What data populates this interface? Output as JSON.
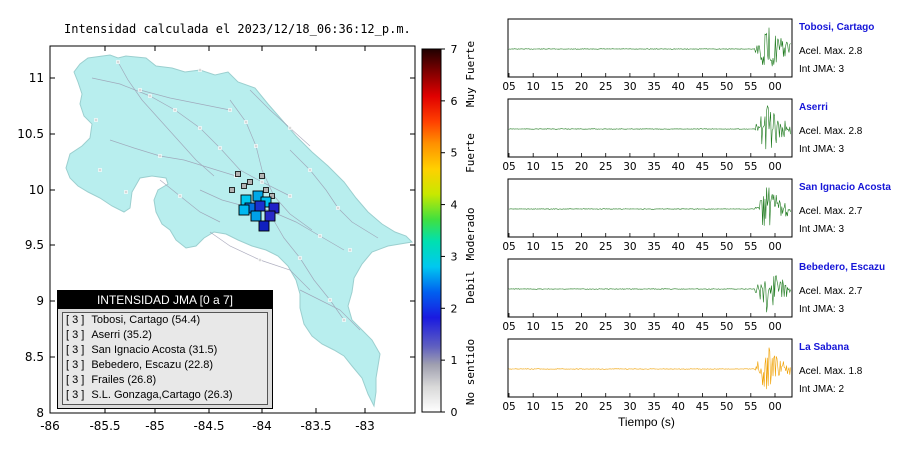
{
  "map": {
    "title": "Intensidad calculada el 2023/12/18_06:36:12_p.m.",
    "lon_ticks": [
      "-86",
      "-85.5",
      "-85",
      "-84.5",
      "-84",
      "-83.5",
      "-83"
    ],
    "lat_ticks": [
      "11",
      "10.5",
      "10",
      "9.5",
      "9",
      "8.5",
      "8"
    ],
    "land_color": "#b8eeee",
    "sea_color": "#ffffff"
  },
  "colorbar": {
    "ticks": [
      "0",
      "1",
      "2",
      "3",
      "4",
      "5",
      "6",
      "7"
    ],
    "categories": [
      "No sentido",
      "Debil",
      "Moderado",
      "Fuerte",
      "Muy Fuerte"
    ]
  },
  "legend": {
    "title": "INTENSIDAD JMA [0 a 7]",
    "rows": [
      {
        "level": "[ 3 ]",
        "station": "Tobosi, Cartago (54.4)"
      },
      {
        "level": "[ 3 ]",
        "station": "Aserri (35.2)"
      },
      {
        "level": "[ 3 ]",
        "station": "San Ignacio Acosta (31.5)"
      },
      {
        "level": "[ 3 ]",
        "station": "Bebedero, Escazu (22.8)"
      },
      {
        "level": "[ 3 ]",
        "station": "Frailes (26.8)"
      },
      {
        "level": "[ 3 ]",
        "station": "S.L. Gonzaga,Cartago (26.3)"
      }
    ]
  },
  "seismograms": {
    "time_label": "Tiempo (s)",
    "ticks": [
      "05",
      "10",
      "15",
      "20",
      "25",
      "30",
      "35",
      "40",
      "45",
      "50",
      "55",
      "00"
    ],
    "stations": [
      {
        "name": "Tobosi, Cartago",
        "accel": "Acel. Max. 2.8",
        "intensity": "Int JMA: 3",
        "color": "#1e7a1e"
      },
      {
        "name": "Aserri",
        "accel": "Acel. Max. 2.8",
        "intensity": "Int JMA: 3",
        "color": "#1e7a1e"
      },
      {
        "name": "San Ignacio Acosta",
        "accel": "Acel. Max. 2.7",
        "intensity": "Int JMA: 3",
        "color": "#1e7a1e"
      },
      {
        "name": "Bebedero, Escazu",
        "accel": "Acel. Max. 2.7",
        "intensity": "Int JMA: 3",
        "color": "#1e7a1e"
      },
      {
        "name": "La Sabana",
        "accel": "Acel. Max. 1.8",
        "intensity": "Int JMA: 2",
        "color": "#f0a000"
      }
    ]
  }
}
